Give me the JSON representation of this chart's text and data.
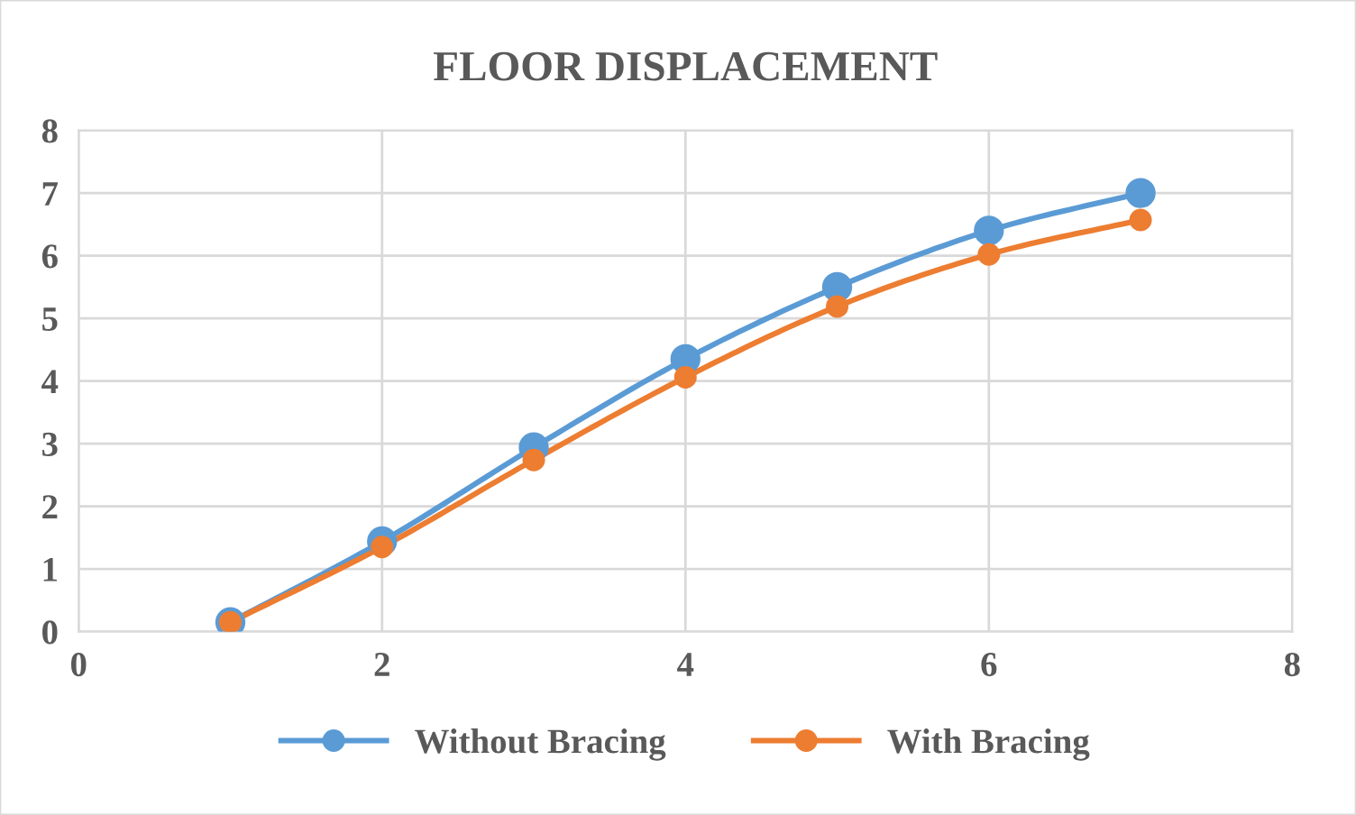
{
  "chart_data": {
    "type": "line",
    "title": "FLOOR DISPLACEMENT",
    "x": [
      1,
      2,
      3,
      4,
      5,
      6,
      7
    ],
    "series": [
      {
        "name": "Without Bracing",
        "color": "#5b9bd5",
        "values": [
          0.15,
          1.44,
          2.94,
          4.35,
          5.5,
          6.4,
          7.0
        ]
      },
      {
        "name": "With Bracing",
        "color": "#ed7d31",
        "values": [
          0.15,
          1.35,
          2.74,
          4.06,
          5.19,
          6.02,
          6.57
        ]
      }
    ],
    "xlim": [
      0,
      8
    ],
    "xticks": [
      0,
      2,
      4,
      6,
      8
    ],
    "ylim": [
      0,
      8
    ],
    "yticks": [
      0,
      1,
      2,
      3,
      4,
      5,
      6,
      7,
      8
    ],
    "grid": true,
    "legend": "bottom",
    "marker": "circle",
    "line_style": "solid"
  }
}
